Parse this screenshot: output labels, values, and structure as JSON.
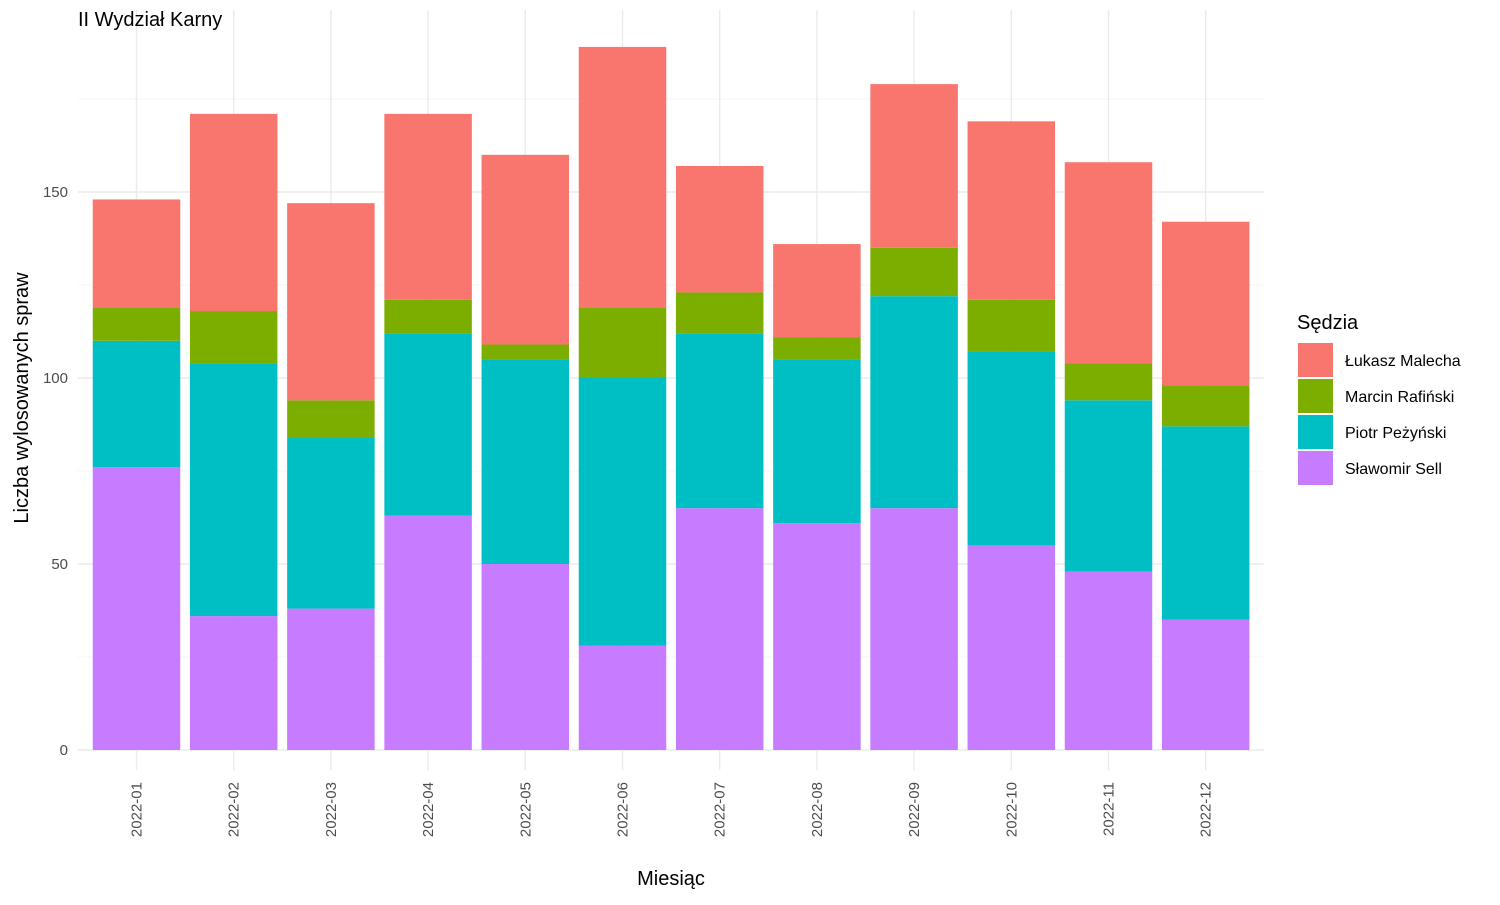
{
  "chart_data": {
    "type": "bar",
    "stacked": true,
    "title": "II Wydział Karny",
    "xlabel": "Miesiąc",
    "ylabel": "Liczba wylosowanych spraw",
    "ylim": [
      0,
      200
    ],
    "yticks": [
      0,
      50,
      100,
      150
    ],
    "grid": true,
    "legend": {
      "title": "Sędzia",
      "placement": "right"
    },
    "categories": [
      "2022-01",
      "2022-02",
      "2022-03",
      "2022-04",
      "2022-05",
      "2022-06",
      "2022-07",
      "2022-08",
      "2022-09",
      "2022-10",
      "2022-11",
      "2022-12"
    ],
    "series": [
      {
        "name": "Łukasz Malecha",
        "color": "#F8766D",
        "values": [
          29,
          53,
          53,
          50,
          51,
          70,
          34,
          25,
          44,
          48,
          54,
          44
        ]
      },
      {
        "name": "Marcin Rafiński",
        "color": "#7CAE00",
        "values": [
          9,
          14,
          10,
          9,
          4,
          19,
          11,
          6,
          13,
          14,
          10,
          11
        ]
      },
      {
        "name": "Piotr Peżyński",
        "color": "#00BFC4",
        "values": [
          34,
          68,
          46,
          49,
          55,
          72,
          47,
          44,
          57,
          52,
          46,
          52
        ]
      },
      {
        "name": "Sławomir Sell",
        "color": "#C77CFF",
        "values": [
          76,
          36,
          38,
          63,
          50,
          28,
          65,
          61,
          65,
          55,
          48,
          35
        ]
      }
    ],
    "stack_order_bottom_to_top": [
      "Sławomir Sell",
      "Piotr Peżyński",
      "Marcin Rafiński",
      "Łukasz Malecha"
    ]
  }
}
